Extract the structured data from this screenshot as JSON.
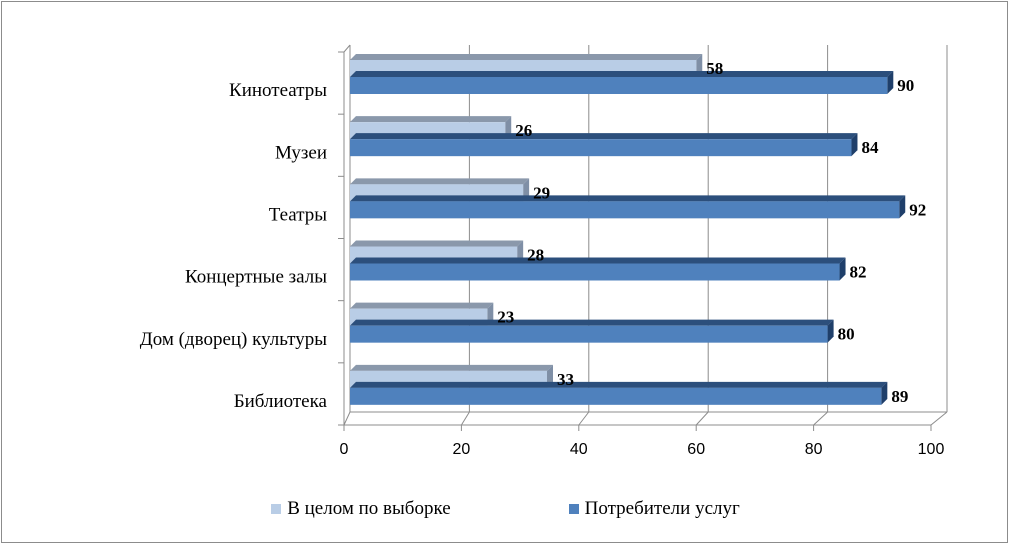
{
  "chart_data": {
    "type": "bar",
    "orientation": "horizontal",
    "categories": [
      "Кинотеатры",
      "Музеи",
      "Театры",
      "Концертные залы",
      "Дом (дворец) культуры",
      "Библиотека"
    ],
    "series": [
      {
        "name": "В целом по выборке",
        "values": [
          58,
          26,
          29,
          28,
          23,
          33
        ],
        "color": "#b9cde6"
      },
      {
        "name": "Потребители услуг",
        "values": [
          90,
          84,
          92,
          82,
          80,
          89
        ],
        "color": "#4f81bd"
      }
    ],
    "xlim": [
      0,
      100
    ],
    "xticks": [
      0,
      20,
      40,
      60,
      80,
      100
    ],
    "title": "",
    "xlabel": "",
    "ylabel": "",
    "grid": true,
    "legend_position": "bottom",
    "style": "3d-bar"
  }
}
